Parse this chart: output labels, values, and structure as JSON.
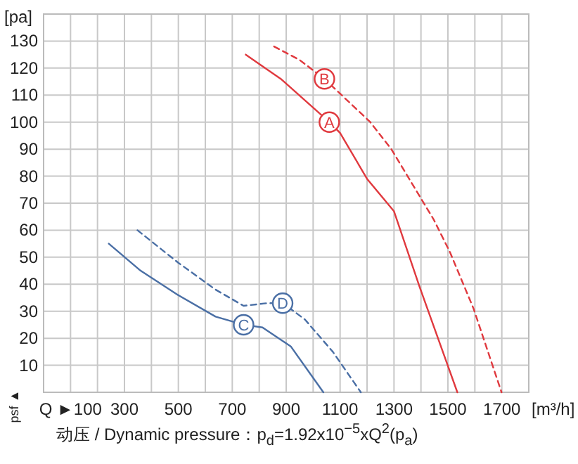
{
  "chart_data": {
    "type": "line",
    "ylabel": "[pa]",
    "xlabel": "[m³/h]",
    "xlim": [
      0,
      1800
    ],
    "ylim": [
      0,
      140
    ],
    "xticks": [
      {
        "value": 100,
        "label": "Q ►100"
      },
      {
        "value": 200,
        "label": null
      },
      300,
      {
        "value": 400,
        "label": null
      },
      500,
      {
        "value": 600,
        "label": null
      },
      700,
      {
        "value": 800,
        "label": null
      },
      900,
      {
        "value": 1000,
        "label": null
      },
      1100,
      {
        "value": 1200,
        "label": null
      },
      1300,
      {
        "value": 1400,
        "label": null
      },
      1500,
      {
        "value": 1600,
        "label": null
      },
      1700
    ],
    "yticks": [
      {
        "value": 0,
        "label": null
      },
      10,
      20,
      30,
      40,
      50,
      60,
      70,
      80,
      90,
      100,
      110,
      120,
      130
    ],
    "grid": true,
    "series": [
      {
        "color": "#e0393e",
        "line_style": "solid",
        "x": [
          750,
          880,
          1060,
          1100,
          1200,
          1300,
          1395,
          1535
        ],
        "values": [
          125,
          116,
          100,
          96,
          79,
          67,
          39,
          0
        ]
      },
      {
        "color": "#e0393e",
        "line_style": "dashed",
        "x": [
          855,
          950,
          1042,
          1212,
          1290,
          1447,
          1507,
          1595,
          1699
        ],
        "values": [
          128,
          123,
          116,
          100,
          90,
          64,
          52,
          31,
          0
        ]
      },
      {
        "color": "#4a6fa5",
        "line_style": "solid",
        "x": [
          242,
          360,
          499,
          638,
          708,
          742,
          812,
          917,
          1038
        ],
        "values": [
          55,
          45,
          36,
          28,
          26,
          25,
          24,
          17,
          0
        ]
      },
      {
        "color": "#4a6fa5",
        "line_style": "dashed",
        "x": [
          348,
          499,
          638,
          742,
          829,
          887,
          969,
          1073,
          1177
        ],
        "values": [
          60,
          48,
          38,
          32,
          33,
          33,
          27,
          15,
          0
        ]
      }
    ],
    "annotations": [
      {
        "text": "A",
        "x": 1060,
        "y": 100
      },
      {
        "text": "B",
        "x": 1042,
        "y": 116
      },
      {
        "text": "C",
        "x": 742,
        "y": 25
      },
      {
        "text": "D",
        "x": 887,
        "y": 33
      },
      "psf ▲",
      "动压 / Dynamic pressure：p$_{d}$=1.92x10$^{−5}$xQ$^{2}$(p$_{a}$)"
    ]
  }
}
